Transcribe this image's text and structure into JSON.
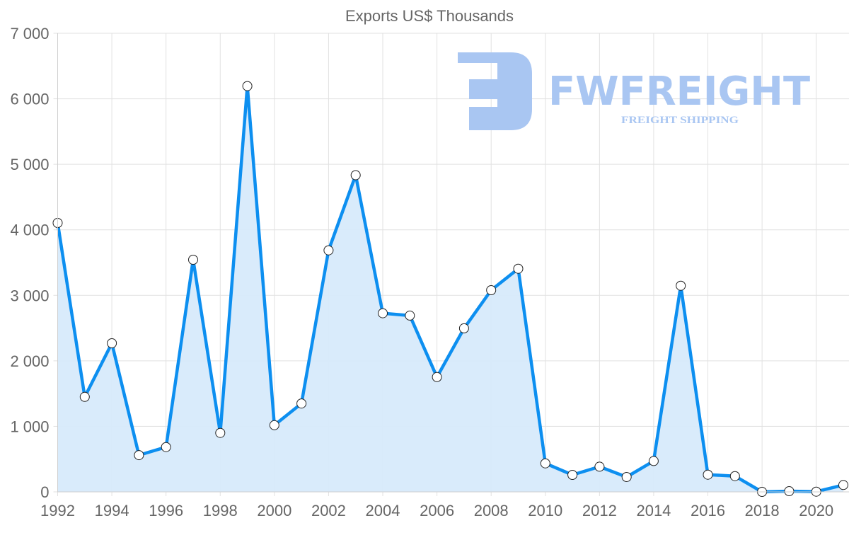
{
  "chart_data": {
    "type": "line",
    "title": "Exports US$ Thousands",
    "xlabel": "",
    "ylabel": "",
    "x": [
      1992,
      1993,
      1994,
      1995,
      1996,
      1997,
      1998,
      1999,
      2000,
      2001,
      2002,
      2003,
      2004,
      2005,
      2006,
      2007,
      2008,
      2009,
      2010,
      2011,
      2012,
      2013,
      2014,
      2015,
      2016,
      2017,
      2018,
      2019,
      2020,
      2021
    ],
    "series": [
      {
        "name": "Exports US$ Thousands",
        "values": [
          4105,
          1450,
          2268,
          561,
          684,
          3543,
          900,
          6194,
          1018,
          1349,
          3687,
          4834,
          2727,
          2691,
          1752,
          2496,
          3079,
          3406,
          435,
          259,
          385,
          227,
          471,
          3147,
          263,
          241,
          0,
          11,
          3,
          105
        ],
        "color": "#0d8ff0",
        "fill": "#d7eafb",
        "filled": true
      }
    ],
    "ylim": [
      0,
      7000
    ],
    "yticks": [
      0,
      1000,
      2000,
      3000,
      4000,
      5000,
      6000,
      7000
    ],
    "ytick_labels": [
      "0",
      "1 000",
      "2 000",
      "3 000",
      "4 000",
      "5 000",
      "6 000",
      "7 000"
    ],
    "xticks": [
      1992,
      1994,
      1996,
      1998,
      2000,
      2002,
      2004,
      2006,
      2008,
      2010,
      2012,
      2014,
      2016,
      2018,
      2020
    ],
    "xtick_labels": [
      "1992",
      "1994",
      "1996",
      "1998",
      "2000",
      "2002",
      "2004",
      "2006",
      "2008",
      "2010",
      "2012",
      "2014",
      "2016",
      "2018",
      "2020"
    ],
    "grid": true,
    "legend": null
  },
  "watermark": {
    "brand": "FWFREIGHT",
    "tagline": "FREIGHT SHIPPING",
    "color": "#a9c6f2"
  }
}
